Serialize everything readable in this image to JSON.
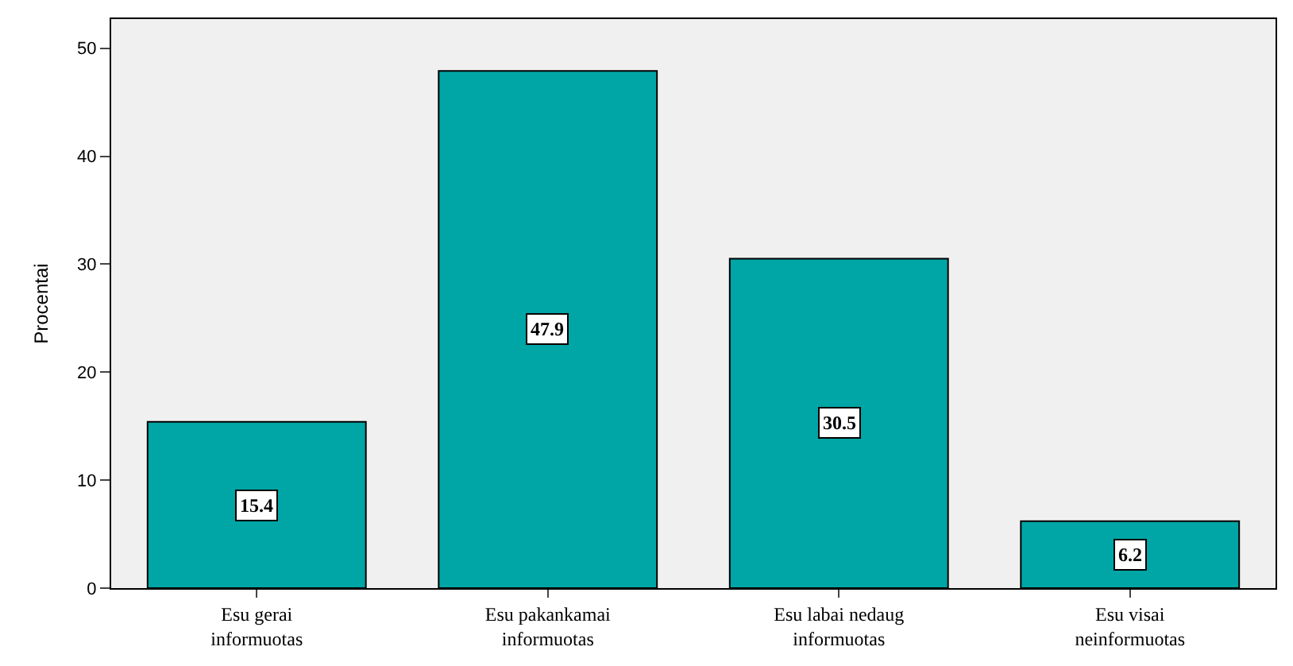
{
  "chart_data": {
    "type": "bar",
    "ylabel": "Procentai",
    "categories": [
      "Esu gerai\ninformuotas",
      "Esu pakankamai\ninformuotas",
      "Esu labai nedaug\ninformuotas",
      "Esu visai\nneinformuotas"
    ],
    "values": [
      15.4,
      47.9,
      30.5,
      6.2
    ],
    "color": "#00a5a5",
    "data_labels": true,
    "ylim": [
      0,
      52.7
    ],
    "yticks": [
      0,
      10,
      20,
      30,
      40,
      50
    ],
    "grid": false,
    "legend": false
  }
}
